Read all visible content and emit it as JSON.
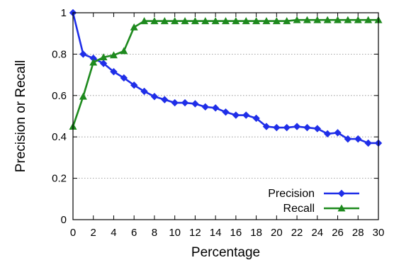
{
  "chart_data": {
    "type": "line",
    "xlabel": "Percentage",
    "ylabel": "Precision or Recall",
    "xlim": [
      0,
      30
    ],
    "ylim": [
      0,
      1
    ],
    "x_ticks": [
      "0",
      "2",
      "4",
      "6",
      "8",
      "10",
      "12",
      "14",
      "16",
      "18",
      "20",
      "22",
      "24",
      "26",
      "28",
      "30"
    ],
    "y_ticks": [
      "0",
      "0.2",
      "0.4",
      "0.6",
      "0.8",
      "1"
    ],
    "grid": "horizontal dotted",
    "legend_position": "bottom-right",
    "x": [
      0,
      1,
      2,
      3,
      4,
      5,
      6,
      7,
      8,
      9,
      10,
      11,
      12,
      13,
      14,
      15,
      16,
      17,
      18,
      19,
      20,
      21,
      22,
      23,
      24,
      25,
      26,
      27,
      28,
      29,
      30
    ],
    "series": [
      {
        "name": "Precision",
        "color": "#1f2ee8",
        "marker": "diamond",
        "values": [
          1.0,
          0.8,
          0.78,
          0.755,
          0.715,
          0.685,
          0.65,
          0.62,
          0.595,
          0.58,
          0.565,
          0.565,
          0.56,
          0.545,
          0.54,
          0.52,
          0.505,
          0.505,
          0.49,
          0.45,
          0.445,
          0.445,
          0.45,
          0.445,
          0.44,
          0.415,
          0.42,
          0.39,
          0.39,
          0.37,
          0.37
        ]
      },
      {
        "name": "Recall",
        "color": "#1e8a1e",
        "marker": "triangle",
        "values": [
          0.45,
          0.595,
          0.76,
          0.785,
          0.795,
          0.815,
          0.93,
          0.96,
          0.96,
          0.96,
          0.96,
          0.96,
          0.96,
          0.96,
          0.96,
          0.96,
          0.96,
          0.96,
          0.96,
          0.96,
          0.96,
          0.96,
          0.965,
          0.965,
          0.965,
          0.965,
          0.965,
          0.965,
          0.965,
          0.965,
          0.965
        ]
      }
    ]
  }
}
